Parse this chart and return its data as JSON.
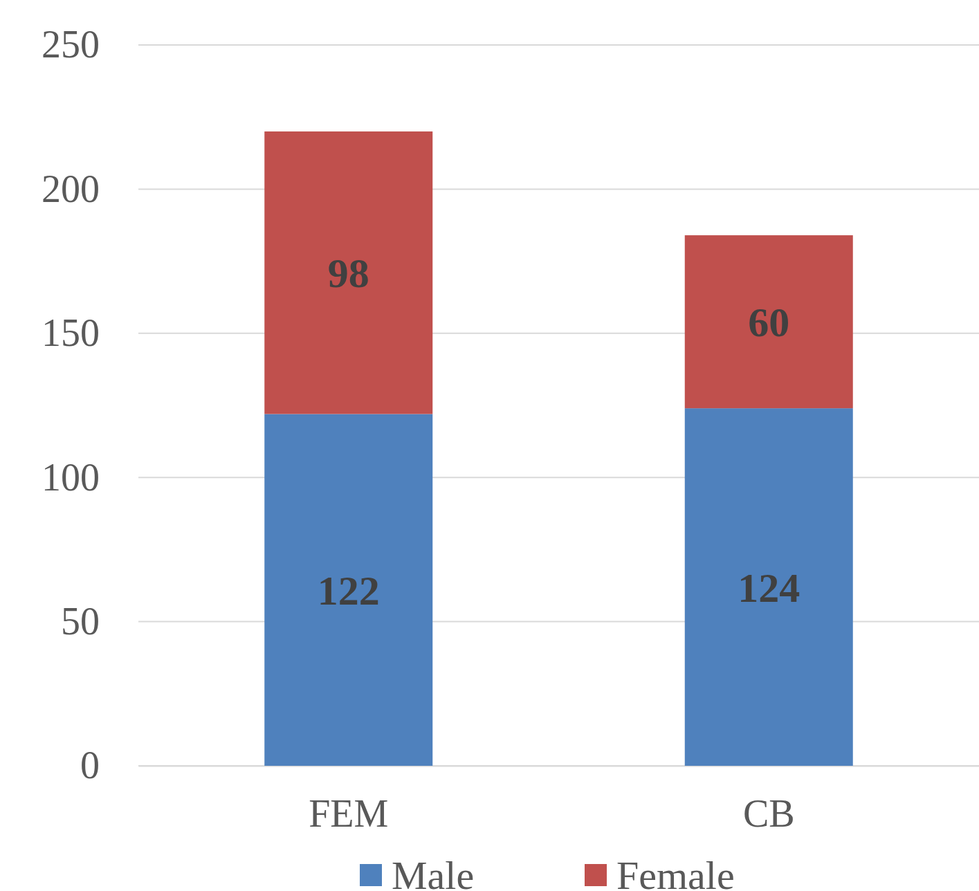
{
  "chart_data": {
    "type": "bar",
    "stacked": true,
    "categories": [
      "FEM",
      "CB"
    ],
    "series": [
      {
        "name": "Male",
        "color": "#4f81bd",
        "values": [
          122,
          124
        ]
      },
      {
        "name": "Female",
        "color": "#c0504d",
        "values": [
          98,
          60
        ]
      }
    ],
    "ylim": [
      0,
      250
    ],
    "yticks": [
      0,
      50,
      100,
      150,
      200,
      250
    ],
    "grid": "y",
    "legend": "bottom",
    "data_labels": true
  }
}
